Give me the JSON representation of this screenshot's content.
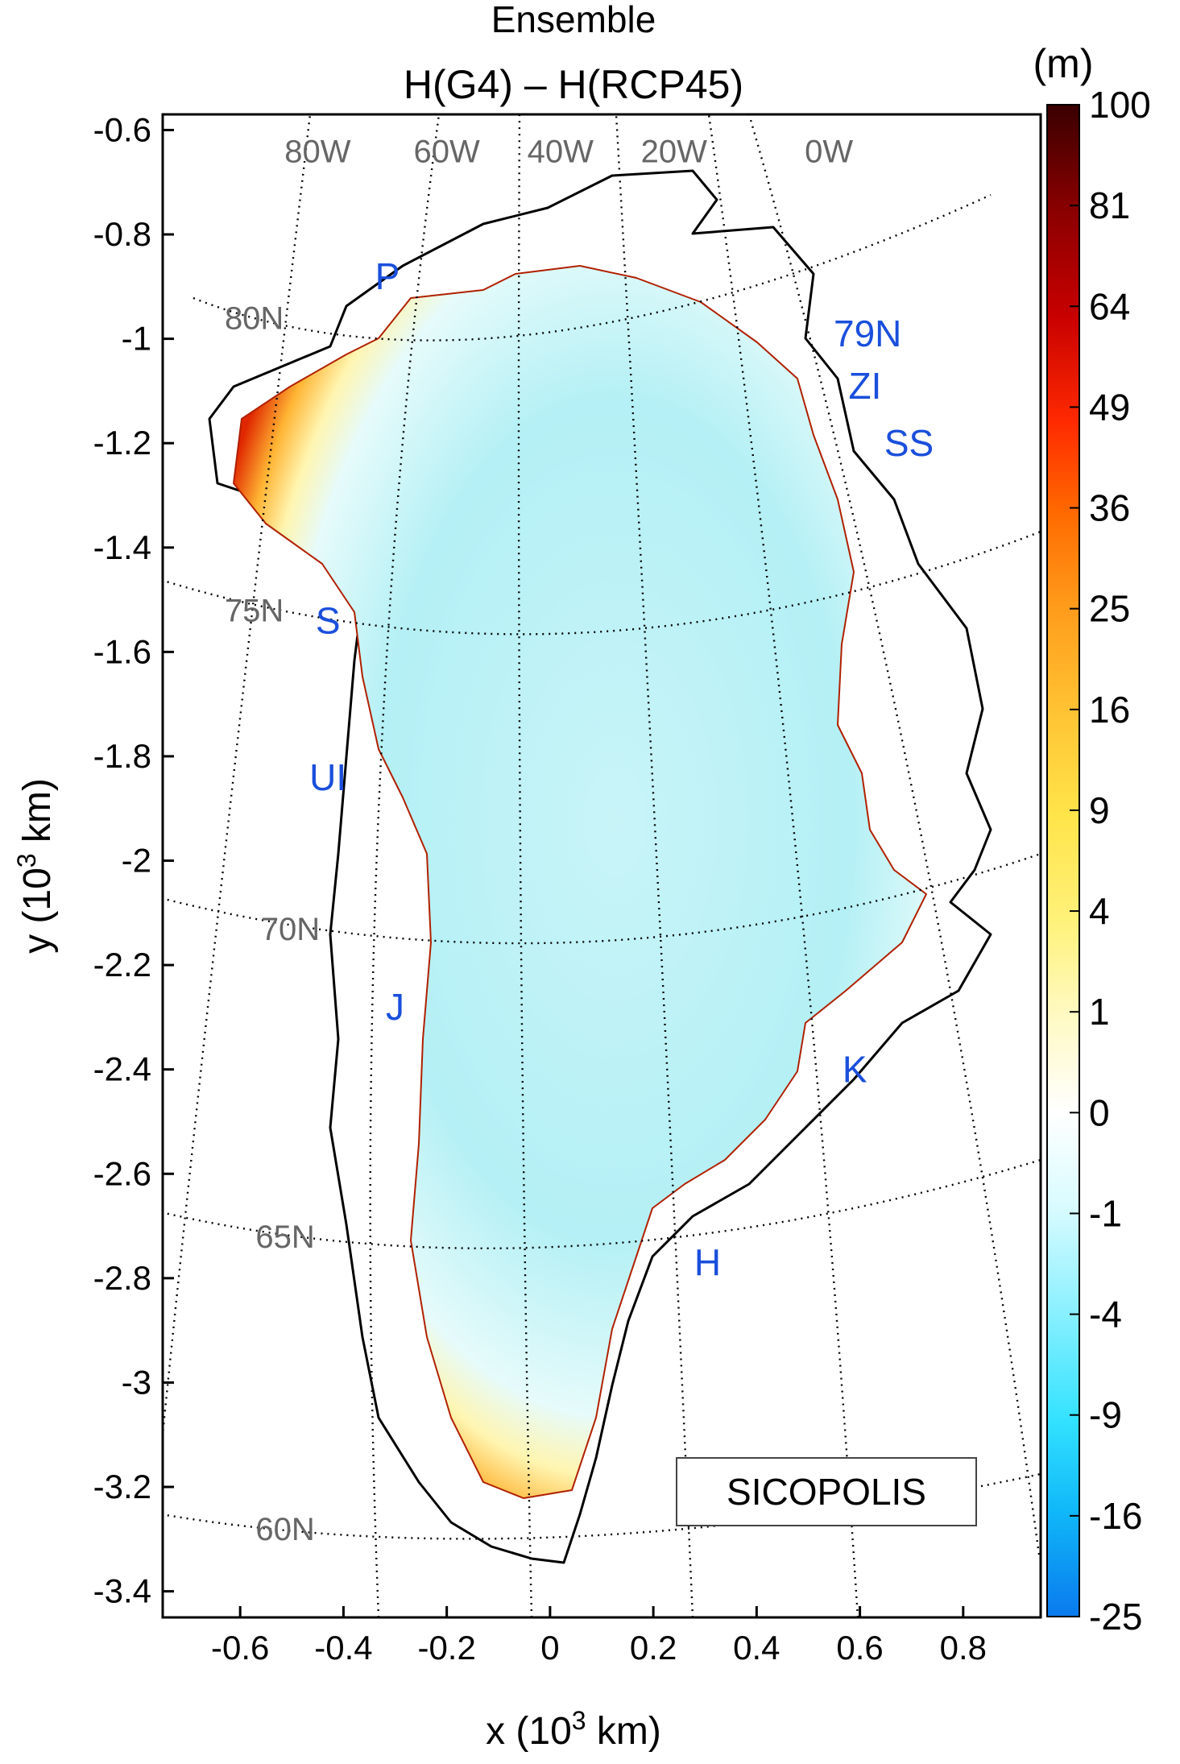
{
  "chart_data": {
    "type": "heatmap",
    "title": "Ensemble",
    "subtitle": "H(G4) – H(RCP45)",
    "xlabel": "x (10",
    "xlabel_sup": "3",
    "xlabel_end": " km)",
    "ylabel": "y (10",
    "ylabel_sup": "3",
    "ylabel_end": " km)",
    "xlim": [
      -0.75,
      0.95
    ],
    "ylim": [
      -3.45,
      -0.57
    ],
    "xticks": [
      -0.6,
      -0.4,
      -0.2,
      0,
      0.2,
      0.4,
      0.6,
      0.8
    ],
    "xtick_labels": [
      "-0.6",
      "-0.4",
      "-0.2",
      "0",
      "0.2",
      "0.4",
      "0.6",
      "0.8"
    ],
    "yticks": [
      -0.6,
      -0.8,
      -1,
      -1.2,
      -1.4,
      -1.6,
      -1.8,
      -2,
      -2.2,
      -2.4,
      -2.6,
      -2.8,
      -3,
      -3.2,
      -3.4
    ],
    "ytick_labels": [
      "-0.6",
      "-0.8",
      "-1",
      "-1.2",
      "-1.4",
      "-1.6",
      "-1.8",
      "-2",
      "-2.2",
      "-2.4",
      "-2.6",
      "-2.8",
      "-3",
      "-3.2",
      "-3.4"
    ],
    "model_label": "SICOPOLIS",
    "colorbar": {
      "unit": "(m)",
      "ticks": [
        "100",
        "81",
        "64",
        "49",
        "36",
        "25",
        "16",
        "9",
        "4",
        "1",
        "0",
        "-1",
        "-4",
        "-9",
        "-16",
        "-25"
      ],
      "colors": [
        "#3a0000",
        "#8a0000",
        "#c80000",
        "#ff2a00",
        "#ff6a00",
        "#ff9a1a",
        "#ffc233",
        "#ffe44a",
        "#fff27a",
        "#fff9c0",
        "#ffffff",
        "#d8fbff",
        "#88f0ff",
        "#33e2ff",
        "#10b8f8",
        "#0a7aee"
      ]
    },
    "longitude_labels": [
      {
        "text": "80W",
        "x": -0.45,
        "y": -0.64
      },
      {
        "text": "60W",
        "x": -0.2,
        "y": -0.64
      },
      {
        "text": "40W",
        "x": 0.02,
        "y": -0.64
      },
      {
        "text": "20W",
        "x": 0.24,
        "y": -0.64
      },
      {
        "text": "0W",
        "x": 0.54,
        "y": -0.64
      }
    ],
    "latitude_labels": [
      {
        "text": "80N",
        "x": -0.63,
        "y": -0.96
      },
      {
        "text": "75N",
        "x": -0.63,
        "y": -1.52
      },
      {
        "text": "70N",
        "x": -0.56,
        "y": -2.13
      },
      {
        "text": "65N",
        "x": -0.57,
        "y": -2.72
      },
      {
        "text": "60N",
        "x": -0.57,
        "y": -3.28
      }
    ],
    "region_labels": [
      {
        "text": "P",
        "x": -0.315,
        "y": -0.88
      },
      {
        "text": "79N",
        "x": 0.615,
        "y": -0.99
      },
      {
        "text": "ZI",
        "x": 0.61,
        "y": -1.09
      },
      {
        "text": "SS",
        "x": 0.695,
        "y": -1.2
      },
      {
        "text": "S",
        "x": -0.43,
        "y": -1.54
      },
      {
        "text": "UI",
        "x": -0.43,
        "y": -1.84
      },
      {
        "text": "J",
        "x": -0.3,
        "y": -2.28
      },
      {
        "text": "K",
        "x": 0.59,
        "y": -2.4
      },
      {
        "text": "H",
        "x": 0.305,
        "y": -2.77
      }
    ]
  }
}
